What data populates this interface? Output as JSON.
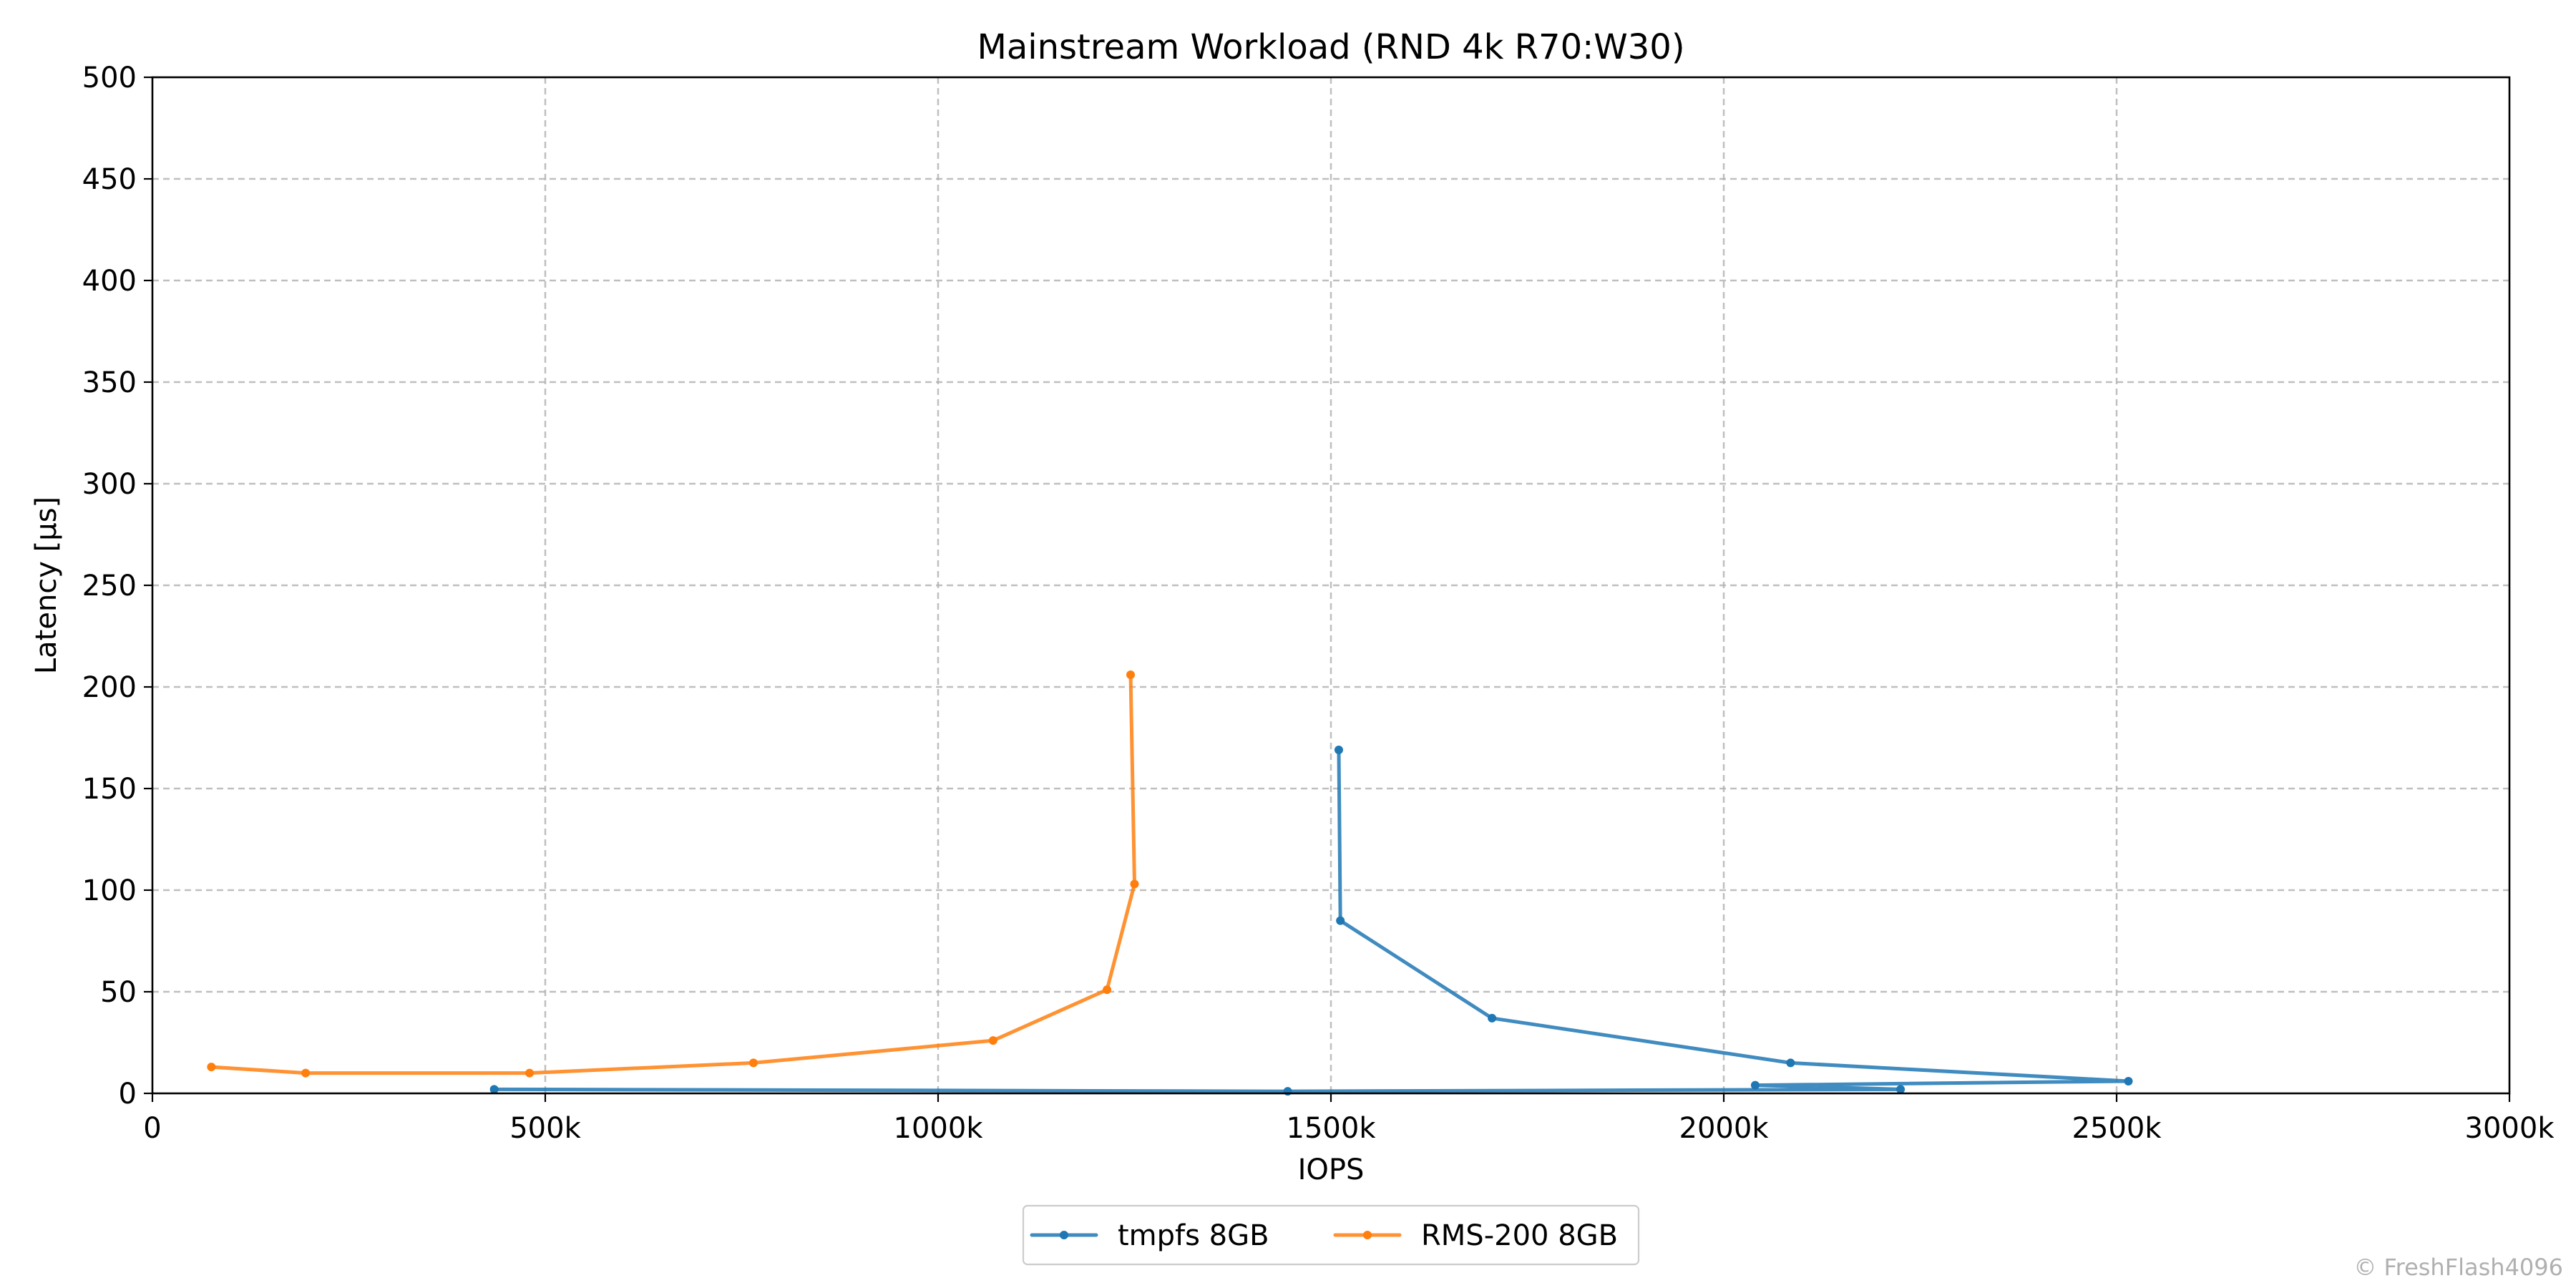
{
  "chart_data": {
    "type": "line",
    "title": "Mainstream Workload (RND 4k R70:W30)",
    "xlabel": "IOPS",
    "ylabel": "Latency [µs]",
    "xlim": [
      0,
      3000000
    ],
    "ylim": [
      0,
      500
    ],
    "x_ticks": [
      0,
      500000,
      1000000,
      1500000,
      2000000,
      2500000,
      3000000
    ],
    "x_tick_labels": [
      "0",
      "500k",
      "1000k",
      "1500k",
      "2000k",
      "2500k",
      "3000k"
    ],
    "y_ticks": [
      0,
      50,
      100,
      150,
      200,
      250,
      300,
      350,
      400,
      450,
      500
    ],
    "y_tick_labels": [
      "0",
      "50",
      "100",
      "150",
      "200",
      "250",
      "300",
      "350",
      "400",
      "450",
      "500"
    ],
    "grid": true,
    "legend_position": "bottom-center",
    "series": [
      {
        "name": "tmpfs 8GB",
        "color": "#1f77b4",
        "marker": "dot",
        "points": [
          {
            "x": 435000,
            "y": 2
          },
          {
            "x": 1445000,
            "y": 1
          },
          {
            "x": 2225000,
            "y": 2
          },
          {
            "x": 2040000,
            "y": 4
          },
          {
            "x": 2515000,
            "y": 6
          },
          {
            "x": 2085000,
            "y": 15
          },
          {
            "x": 1705000,
            "y": 37
          },
          {
            "x": 1512000,
            "y": 85
          },
          {
            "x": 1510000,
            "y": 169
          }
        ]
      },
      {
        "name": "RMS-200 8GB",
        "color": "#ff7f0e",
        "marker": "dot",
        "points": [
          {
            "x": 75000,
            "y": 13
          },
          {
            "x": 195000,
            "y": 10
          },
          {
            "x": 480000,
            "y": 10
          },
          {
            "x": 765000,
            "y": 15
          },
          {
            "x": 1070000,
            "y": 26
          },
          {
            "x": 1215000,
            "y": 51
          },
          {
            "x": 1250000,
            "y": 103
          },
          {
            "x": 1245000,
            "y": 206
          }
        ]
      }
    ]
  },
  "watermark": "© FreshFlash4096"
}
